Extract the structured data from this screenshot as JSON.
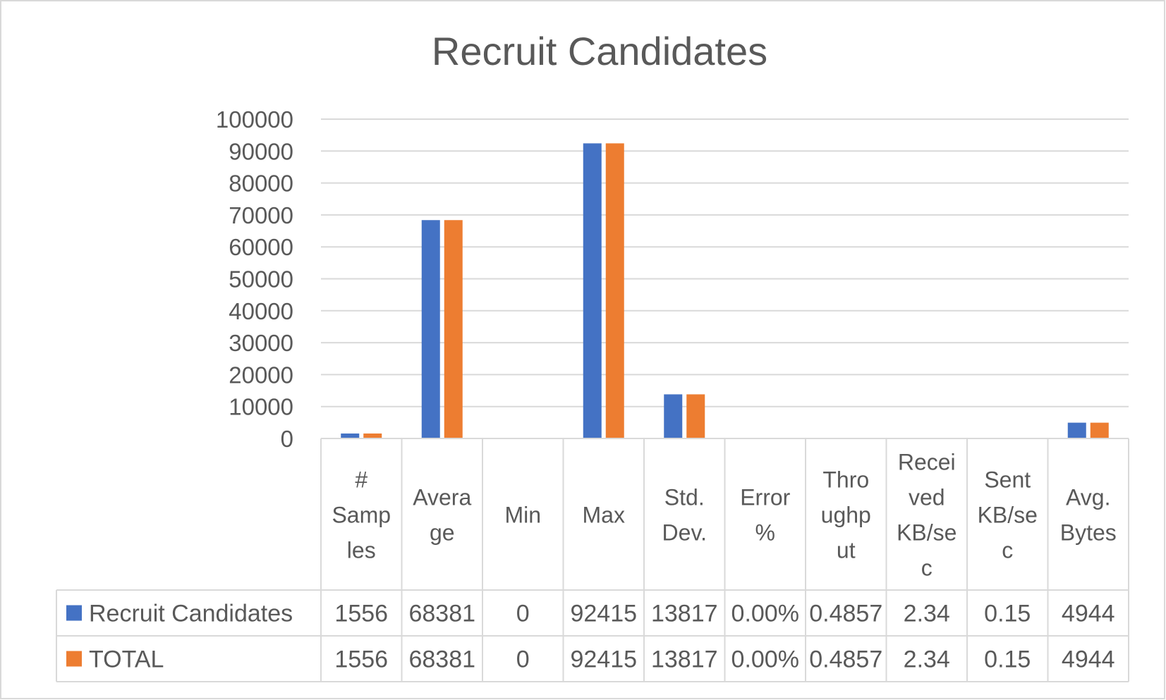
{
  "chart_data": {
    "type": "bar",
    "title": "Recruit Candidates",
    "ylim": [
      0,
      100000
    ],
    "yticks": [
      "0",
      "10000",
      "20000",
      "30000",
      "40000",
      "50000",
      "60000",
      "70000",
      "80000",
      "90000",
      "100000"
    ],
    "grid": true,
    "legend": "data-table",
    "categories": [
      [
        "#",
        "Samp",
        "les"
      ],
      [
        "Avera",
        "ge"
      ],
      [
        "Min"
      ],
      [
        "Max"
      ],
      [
        "Std.",
        "Dev."
      ],
      [
        "Error",
        "%"
      ],
      [
        "Thro",
        "ughp",
        "ut"
      ],
      [
        "Recei",
        "ved",
        "KB/se",
        "c"
      ],
      [
        "Sent",
        "KB/se",
        "c"
      ],
      [
        "Avg.",
        "Bytes"
      ]
    ],
    "series": [
      {
        "name": "Recruit Candidates",
        "color": "#4472c4",
        "values": [
          1556,
          68381,
          0,
          92415,
          13817,
          0,
          0.4857,
          2.34,
          0.15,
          4944
        ],
        "labels": [
          "1556",
          "68381",
          "0",
          "92415",
          "13817",
          "0.00%",
          "0.4857",
          "2.34",
          "0.15",
          "4944"
        ]
      },
      {
        "name": "TOTAL",
        "color": "#ed7d31",
        "values": [
          1556,
          68381,
          0,
          92415,
          13817,
          0,
          0.4857,
          2.34,
          0.15,
          4944
        ],
        "labels": [
          "1556",
          "68381",
          "0",
          "92415",
          "13817",
          "0.00%",
          "0.4857",
          "2.34",
          "0.15",
          "4944"
        ]
      }
    ]
  }
}
